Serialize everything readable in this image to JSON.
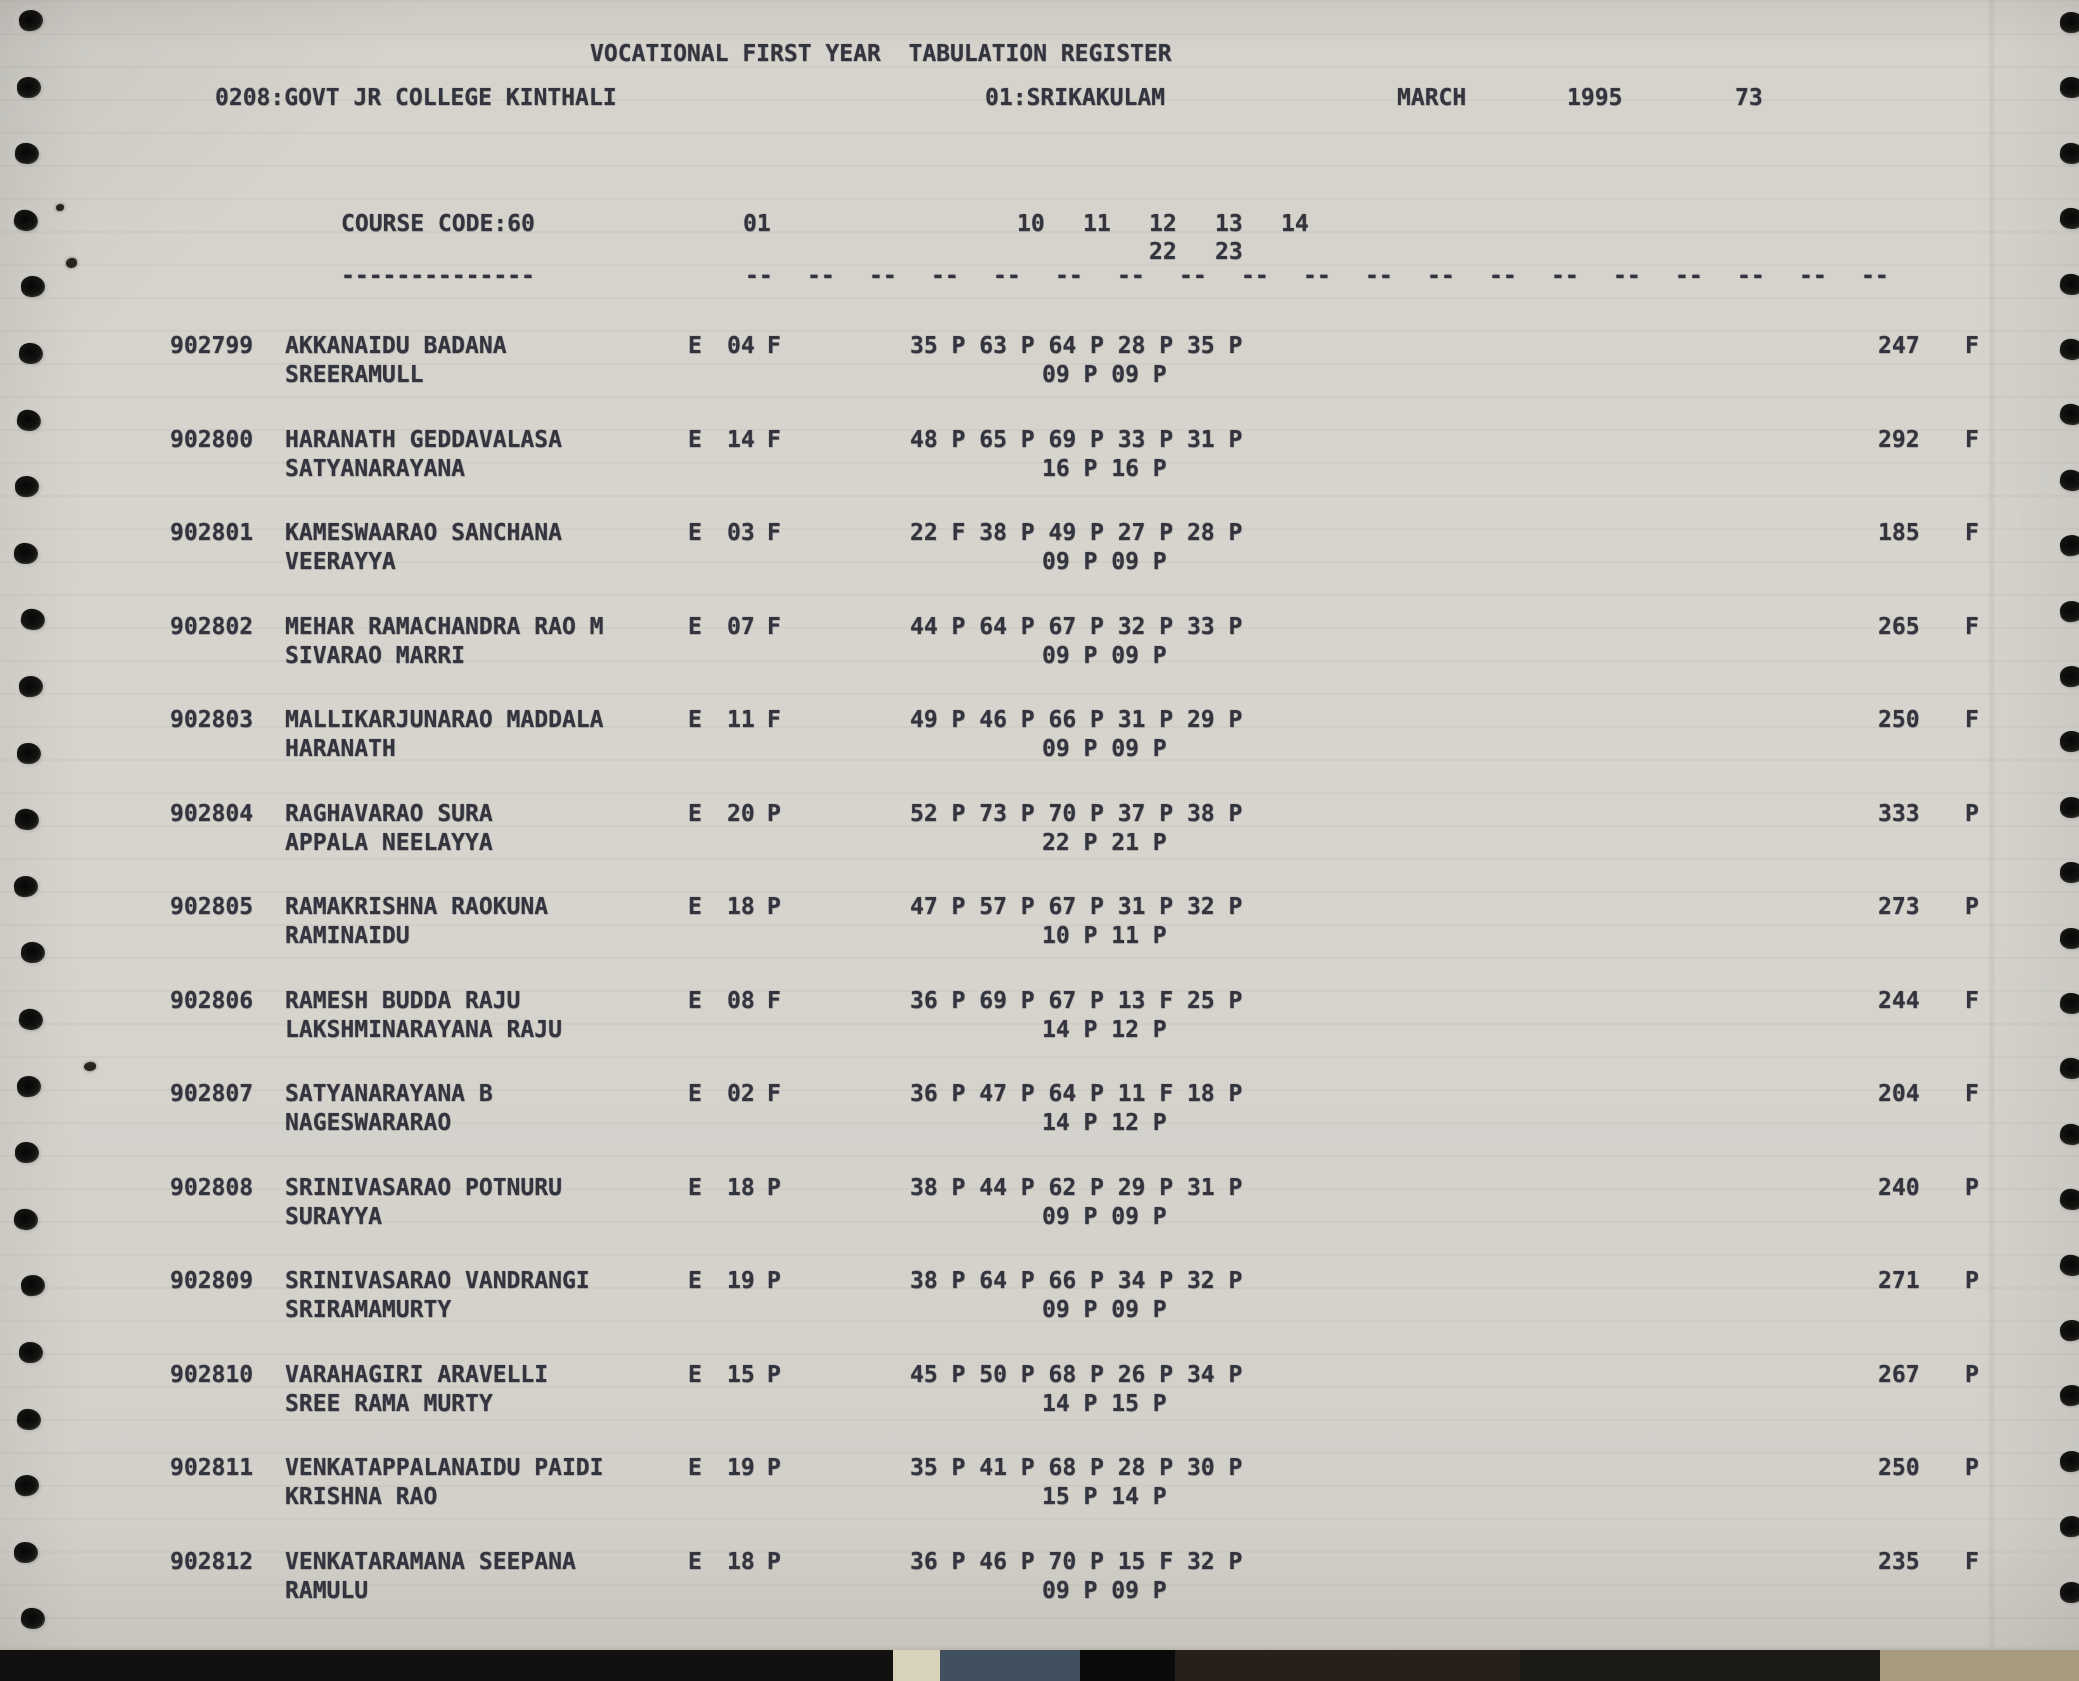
{
  "register": {
    "title": "VOCATIONAL FIRST YEAR  TABULATION REGISTER",
    "college": "0208:GOVT JR COLLEGE KINTHALI",
    "district": "01:SRIKAKULAM",
    "month": "MARCH",
    "year": "1995",
    "page_number": "73"
  },
  "table_header": {
    "course_code": "COURSE CODE:60",
    "language_column": "01",
    "subject_columns": [
      "10",
      "11",
      "12",
      "13",
      "14"
    ],
    "subject_columns_row2": [
      "22",
      "23"
    ],
    "underline_dashes": "--------------",
    "column_dash": "--"
  },
  "ink_color": "#34343f",
  "paper_color": "#d6d4cd",
  "students": [
    {
      "roll_no": "902799",
      "name_line1": "AKKANAIDU BADANA",
      "name_line2": "SREERAMULL",
      "medium": "E",
      "paper01_marks": "04",
      "paper01_result": "F",
      "marks_row1": "35 P 63 P 64 P 28 P 35 P",
      "marks_row2": "09 P 09 P",
      "total": "247",
      "result": "F"
    },
    {
      "roll_no": "902800",
      "name_line1": "HARANATH GEDDAVALASA",
      "name_line2": "SATYANARAYANA",
      "medium": "E",
      "paper01_marks": "14",
      "paper01_result": "F",
      "marks_row1": "48 P 65 P 69 P 33 P 31 P",
      "marks_row2": "16 P 16 P",
      "total": "292",
      "result": "F"
    },
    {
      "roll_no": "902801",
      "name_line1": "KAMESWAARAO SANCHANA",
      "name_line2": "VEERAYYA",
      "medium": "E",
      "paper01_marks": "03",
      "paper01_result": "F",
      "marks_row1": "22 F 38 P 49 P 27 P 28 P",
      "marks_row2": "09 P 09 P",
      "total": "185",
      "result": "F"
    },
    {
      "roll_no": "902802",
      "name_line1": "MEHAR RAMACHANDRA RAO M",
      "name_line2": "SIVARAO MARRI",
      "medium": "E",
      "paper01_marks": "07",
      "paper01_result": "F",
      "marks_row1": "44 P 64 P 67 P 32 P 33 P",
      "marks_row2": "09 P 09 P",
      "total": "265",
      "result": "F"
    },
    {
      "roll_no": "902803",
      "name_line1": "MALLIKARJUNARAO MADDALA",
      "name_line2": "HARANATH",
      "medium": "E",
      "paper01_marks": "11",
      "paper01_result": "F",
      "marks_row1": "49 P 46 P 66 P 31 P 29 P",
      "marks_row2": "09 P 09 P",
      "total": "250",
      "result": "F"
    },
    {
      "roll_no": "902804",
      "name_line1": "RAGHAVARAO SURA",
      "name_line2": "APPALA NEELAYYA",
      "medium": "E",
      "paper01_marks": "20",
      "paper01_result": "P",
      "marks_row1": "52 P 73 P 70 P 37 P 38 P",
      "marks_row2": "22 P 21 P",
      "total": "333",
      "result": "P"
    },
    {
      "roll_no": "902805",
      "name_line1": "RAMAKRISHNA RAOKUNA",
      "name_line2": "RAMINAIDU",
      "medium": "E",
      "paper01_marks": "18",
      "paper01_result": "P",
      "marks_row1": "47 P 57 P 67 P 31 P 32 P",
      "marks_row2": "10 P 11 P",
      "total": "273",
      "result": "P"
    },
    {
      "roll_no": "902806",
      "name_line1": "RAMESH BUDDA RAJU",
      "name_line2": "LAKSHMINARAYANA RAJU",
      "medium": "E",
      "paper01_marks": "08",
      "paper01_result": "F",
      "marks_row1": "36 P 69 P 67 P 13 F 25 P",
      "marks_row2": "14 P 12 P",
      "total": "244",
      "result": "F"
    },
    {
      "roll_no": "902807",
      "name_line1": "SATYANARAYANA B",
      "name_line2": "NAGESWARARAO",
      "medium": "E",
      "paper01_marks": "02",
      "paper01_result": "F",
      "marks_row1": "36 P 47 P 64 P 11 F 18 P",
      "marks_row2": "14 P 12 P",
      "total": "204",
      "result": "F"
    },
    {
      "roll_no": "902808",
      "name_line1": "SRINIVASARAO POTNURU",
      "name_line2": "SURAYYA",
      "medium": "E",
      "paper01_marks": "18",
      "paper01_result": "P",
      "marks_row1": "38 P 44 P 62 P 29 P 31 P",
      "marks_row2": "09 P 09 P",
      "total": "240",
      "result": "P"
    },
    {
      "roll_no": "902809",
      "name_line1": "SRINIVASARAO VANDRANGI",
      "name_line2": "SRIRAMAMURTY",
      "medium": "E",
      "paper01_marks": "19",
      "paper01_result": "P",
      "marks_row1": "38 P 64 P 66 P 34 P 32 P",
      "marks_row2": "09 P 09 P",
      "total": "271",
      "result": "P"
    },
    {
      "roll_no": "902810",
      "name_line1": "VARAHAGIRI ARAVELLI",
      "name_line2": "SREE RAMA MURTY",
      "medium": "E",
      "paper01_marks": "15",
      "paper01_result": "P",
      "marks_row1": "45 P 50 P 68 P 26 P 34 P",
      "marks_row2": "14 P 15 P",
      "total": "267",
      "result": "P"
    },
    {
      "roll_no": "902811",
      "name_line1": "VENKATAPPALANAIDU PAIDI",
      "name_line2": "KRISHNA RAO",
      "medium": "E",
      "paper01_marks": "19",
      "paper01_result": "P",
      "marks_row1": "35 P 41 P 68 P 28 P 30 P",
      "marks_row2": "15 P 14 P",
      "total": "250",
      "result": "P"
    },
    {
      "roll_no": "902812",
      "name_line1": "VENKATARAMANA SEEPANA",
      "name_line2": "RAMULU",
      "medium": "E",
      "paper01_marks": "18",
      "paper01_result": "P",
      "marks_row1": "36 P 46 P 70 P 15 F 32 P",
      "marks_row2": "09 P 09 P",
      "total": "235",
      "result": "F"
    }
  ]
}
